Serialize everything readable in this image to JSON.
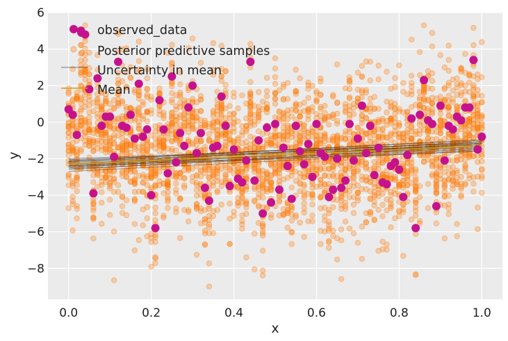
{
  "chart_data": {
    "type": "scatter",
    "xlabel": "x",
    "ylabel": "y",
    "xlim": [
      -0.05,
      1.05
    ],
    "ylim": [
      -9.7,
      6.0
    ],
    "xticks": [
      0.0,
      0.2,
      0.4,
      0.6,
      0.8,
      1.0
    ],
    "xtick_labels": [
      "0.0",
      "0.2",
      "0.4",
      "0.6",
      "0.8",
      "1.0"
    ],
    "yticks": [
      -8,
      -6,
      -4,
      -2,
      0,
      2,
      4,
      6
    ],
    "ytick_labels": [
      "−8",
      "−6",
      "−4",
      "−2",
      "0",
      "2",
      "4",
      "6"
    ],
    "grid": true,
    "background": "#ebebeb",
    "legend_position": "top-left",
    "legend": [
      {
        "label": "observed_data",
        "marker": "circle",
        "color": "#c5128c"
      },
      {
        "label": "Posterior predictive samples",
        "marker": "circle",
        "color": "#ff7f0e"
      },
      {
        "label": "Uncertainty in mean",
        "marker": "line",
        "color": "#000000"
      },
      {
        "label": "Mean",
        "marker": "line",
        "color": "#d4a017"
      }
    ],
    "observed_data": {
      "color": "#c5128c",
      "x": [
        0.0,
        0.01,
        0.02,
        0.03,
        0.04,
        0.05,
        0.06,
        0.07,
        0.08,
        0.09,
        0.1,
        0.11,
        0.12,
        0.13,
        0.14,
        0.15,
        0.16,
        0.17,
        0.18,
        0.19,
        0.2,
        0.21,
        0.22,
        0.23,
        0.24,
        0.25,
        0.26,
        0.27,
        0.28,
        0.29,
        0.3,
        0.31,
        0.32,
        0.33,
        0.34,
        0.35,
        0.36,
        0.37,
        0.38,
        0.39,
        0.4,
        0.41,
        0.42,
        0.43,
        0.44,
        0.45,
        0.46,
        0.47,
        0.48,
        0.49,
        0.5,
        0.51,
        0.52,
        0.53,
        0.54,
        0.55,
        0.56,
        0.57,
        0.58,
        0.59,
        0.6,
        0.61,
        0.62,
        0.63,
        0.64,
        0.65,
        0.66,
        0.67,
        0.68,
        0.69,
        0.7,
        0.71,
        0.72,
        0.73,
        0.74,
        0.75,
        0.76,
        0.77,
        0.78,
        0.79,
        0.8,
        0.81,
        0.82,
        0.83,
        0.84,
        0.85,
        0.86,
        0.87,
        0.88,
        0.89,
        0.9,
        0.91,
        0.92,
        0.93,
        0.94,
        0.95,
        0.96,
        0.97,
        0.98,
        0.99,
        1.0
      ],
      "y": [
        0.7,
        0.4,
        -0.7,
        5.0,
        4.8,
        1.8,
        -3.9,
        2.4,
        -0.2,
        0.3,
        0.3,
        -1.9,
        3.3,
        -0.2,
        -0.3,
        0.4,
        -0.9,
        2.1,
        -0.8,
        -0.4,
        -4.0,
        -5.8,
        1.2,
        -0.4,
        -2.8,
        2.5,
        -2.2,
        -0.6,
        -1.3,
        0.8,
        2.0,
        -1.7,
        -0.6,
        -3.6,
        -4.3,
        -1.4,
        -1.3,
        1.4,
        -0.2,
        -3.5,
        -1.5,
        -3.1,
        -3.3,
        -2.1,
        3.3,
        -3.2,
        -1.0,
        -5.0,
        -0.3,
        -4.4,
        -0.1,
        -3.7,
        -1.4,
        -2.4,
        -4.2,
        -0.2,
        -1.6,
        -2.3,
        -1.2,
        -3.0,
        -0.1,
        -1.7,
        -1.9,
        -4.1,
        -3.7,
        -2.0,
        -3.6,
        -3.2,
        -0.1,
        -2.1,
        -0.9,
        0.9,
        -1.7,
        -0.2,
        -2.9,
        -1.4,
        -3.3,
        -3.4,
        -2.4,
        -2.2,
        -2.6,
        -4.1,
        -1.8,
        0.2,
        -5.8,
        0.4,
        2.3,
        0.1,
        -0.1,
        -4.6,
        0.9,
        -2.1,
        -0.2,
        -0.4,
        0.3,
        0.1,
        0.8,
        0.8,
        3.4,
        -1.5,
        -0.8
      ]
    },
    "uncertainty_lines": {
      "color": "#000000",
      "lines": [
        [
          [
            0,
            -2.0
          ],
          [
            1,
            -1.15
          ]
        ],
        [
          [
            0,
            -2.05
          ],
          [
            1,
            -1.25
          ]
        ],
        [
          [
            0,
            -2.1
          ],
          [
            1,
            -1.0
          ]
        ],
        [
          [
            0,
            -2.15
          ],
          [
            1,
            -1.3
          ]
        ],
        [
          [
            0,
            -2.2
          ],
          [
            1,
            -1.1
          ]
        ],
        [
          [
            0,
            -2.25
          ],
          [
            1,
            -1.35
          ]
        ],
        [
          [
            0,
            -2.3
          ],
          [
            1,
            -1.05
          ]
        ],
        [
          [
            0,
            -2.35
          ],
          [
            1,
            -1.4
          ]
        ],
        [
          [
            0,
            -2.4
          ],
          [
            1,
            -1.2
          ]
        ],
        [
          [
            0,
            -2.45
          ],
          [
            1,
            -1.45
          ]
        ],
        [
          [
            0,
            -2.5
          ],
          [
            1,
            -1.15
          ]
        ],
        [
          [
            0,
            -2.55
          ],
          [
            1,
            -1.5
          ]
        ],
        [
          [
            0,
            -2.6
          ],
          [
            1,
            -1.3
          ]
        ],
        [
          [
            0,
            -2.7
          ],
          [
            1,
            -1.55
          ]
        ],
        [
          [
            0,
            -2.15
          ],
          [
            1,
            -0.95
          ]
        ],
        [
          [
            0,
            -2.4
          ],
          [
            1,
            -1.6
          ]
        ]
      ]
    },
    "mean_line": {
      "color": "#d4a017",
      "points": [
        [
          0,
          -2.3
        ],
        [
          1,
          -1.3
        ]
      ]
    }
  }
}
